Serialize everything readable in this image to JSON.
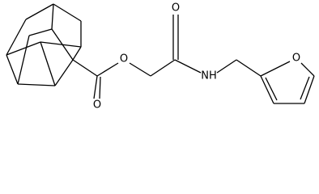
{
  "atoms": [
    {
      "label": "O"
    },
    {
      "label": "O"
    },
    {
      "label": "O"
    },
    {
      "label": "NH"
    },
    {
      "label": "O"
    }
  ]
}
